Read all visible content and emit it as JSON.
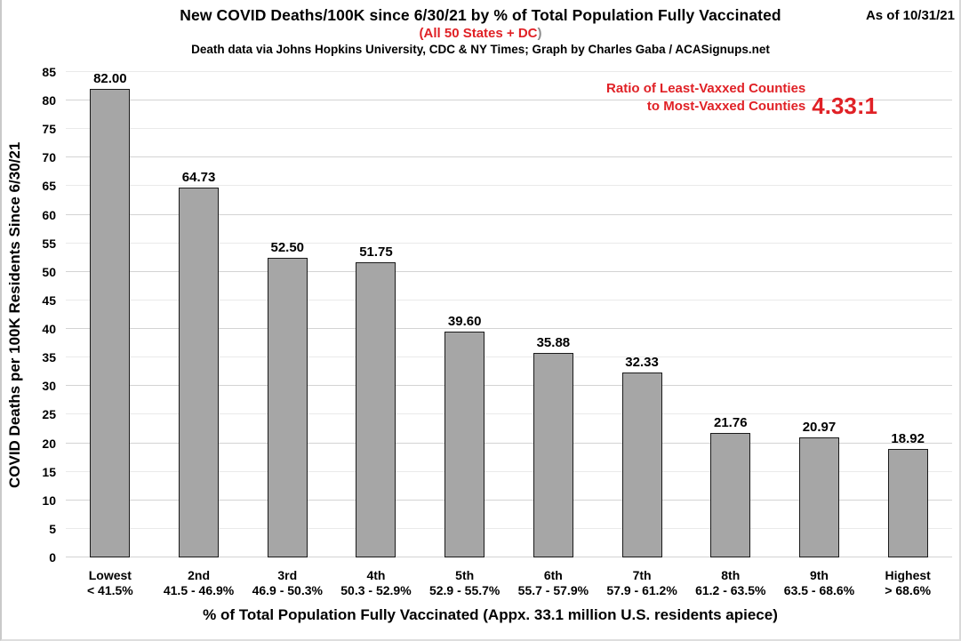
{
  "header": {
    "title": "New COVID Deaths/100K since 6/30/21 by % of Total Population Fully Vaccinated",
    "as_of": "As of 10/31/21",
    "subtitle_red": "(All 50 States + DC",
    "subtitle_close": ")",
    "credit": "Death data via Johns Hopkins University, CDC & NY Times; Graph by Charles Gaba / ACASignups.net"
  },
  "annotation": {
    "line1": "Ratio of Least-Vaxxed Counties",
    "line2": "to Most-Vaxxed Counties",
    "ratio_value": "4.33:1"
  },
  "colors": {
    "bar_fill": "#a6a6a6",
    "bar_border": "#1a1a1a",
    "grid_major": "#d3d3d3",
    "grid_minor": "#eaeaea",
    "accent_red": "#e02126",
    "subtitle_paren_gray": "#8c8c8c",
    "text": "#000000"
  },
  "chart_data": {
    "type": "bar",
    "title": "New COVID Deaths/100K since 6/30/21 by % of Total Population Fully Vaccinated",
    "subtitle": "(All 50 States + DC)",
    "categories": [
      "Lowest",
      "2nd",
      "3rd",
      "4th",
      "5th",
      "6th",
      "7th",
      "8th",
      "9th",
      "Highest"
    ],
    "category_ranges": [
      "< 41.5%",
      "41.5 - 46.9%",
      "46.9 - 50.3%",
      "50.3 - 52.9%",
      "52.9 - 55.7%",
      "55.7 - 57.9%",
      "57.9 - 61.2%",
      "61.2 - 63.5%",
      "63.5 - 68.6%",
      "> 68.6%"
    ],
    "values": [
      82.0,
      64.73,
      52.5,
      51.75,
      39.6,
      35.88,
      32.33,
      21.76,
      20.97,
      18.92
    ],
    "value_labels": [
      "82.00",
      "64.73",
      "52.50",
      "51.75",
      "39.60",
      "35.88",
      "32.33",
      "21.76",
      "20.97",
      "18.92"
    ],
    "xlabel": "% of Total Population Fully Vaccinated (Appx. 33.1 million U.S. residents apiece)",
    "ylabel": "COVID Deaths per 100K Residents Since 6/30/21",
    "ylim": [
      0,
      85
    ],
    "ytick_step": 5,
    "grid": "horizontal",
    "legend": "none",
    "bar_color": "#a6a6a6"
  }
}
